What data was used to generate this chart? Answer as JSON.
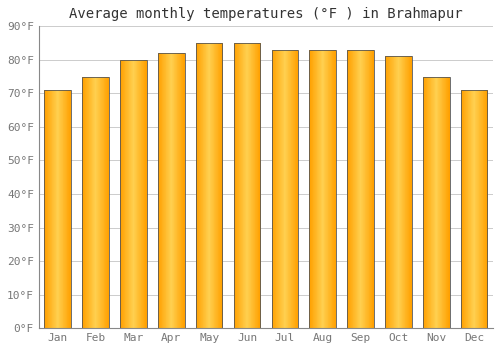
{
  "months": [
    "Jan",
    "Feb",
    "Mar",
    "Apr",
    "May",
    "Jun",
    "Jul",
    "Aug",
    "Sep",
    "Oct",
    "Nov",
    "Dec"
  ],
  "values": [
    71,
    75,
    80,
    82,
    85,
    85,
    83,
    83,
    83,
    81,
    75,
    71
  ],
  "title": "Average monthly temperatures (°F ) in Brahmapur",
  "ylim": [
    0,
    90
  ],
  "yticks": [
    0,
    10,
    20,
    30,
    40,
    50,
    60,
    70,
    80,
    90
  ],
  "ytick_labels": [
    "0°F",
    "10°F",
    "20°F",
    "30°F",
    "40°F",
    "50°F",
    "60°F",
    "70°F",
    "80°F",
    "90°F"
  ],
  "background_color": "#FFFFFF",
  "grid_color": "#CCCCCC",
  "bar_color_center": "#FFD050",
  "bar_color_edge": "#FFA000",
  "bar_border_color": "#555555",
  "title_fontsize": 10,
  "tick_fontsize": 8,
  "bar_width": 0.7
}
